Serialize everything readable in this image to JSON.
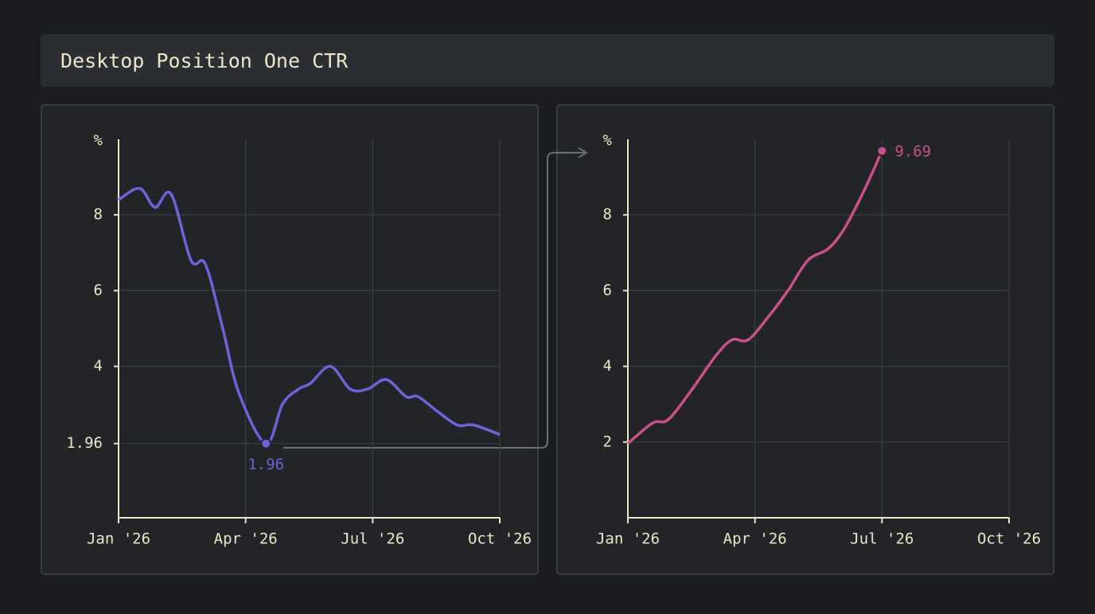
{
  "header": {
    "title": "Desktop Position One CTR"
  },
  "chart_data": [
    {
      "type": "line",
      "y_label": "%",
      "x": [
        0,
        0.5,
        0.86,
        1.24,
        1.71,
        2.05,
        2.46,
        2.84,
        3.48,
        3.87,
        4.25,
        4.53,
        5.0,
        5.47,
        5.88,
        6.32,
        6.79,
        7.07,
        7.54,
        8.0,
        8.38,
        9.0
      ],
      "series": [
        {
          "color": "#6f63d9",
          "values": [
            8.4,
            8.7,
            8.2,
            8.55,
            6.8,
            6.7,
            5.0,
            3.3,
            1.96,
            3.0,
            3.4,
            3.55,
            4.0,
            3.4,
            3.4,
            3.65,
            3.2,
            3.2,
            2.8,
            2.45,
            2.45,
            2.2
          ]
        }
      ],
      "xlim": [
        0,
        9
      ],
      "ylim": [
        0,
        10
      ],
      "xticks": [
        {
          "value": 0,
          "label": "Jan '26"
        },
        {
          "value": 3,
          "label": "Apr '26"
        },
        {
          "value": 6,
          "label": "Jul '26"
        },
        {
          "value": 9,
          "label": "Oct '26"
        }
      ],
      "yticks": [
        1.96,
        4,
        6,
        8
      ],
      "grid": true
    },
    {
      "type": "line",
      "y_label": "%",
      "x": [
        0,
        0.58,
        0.96,
        1.52,
        2.09,
        2.46,
        2.84,
        3.31,
        3.78,
        4.25,
        4.72,
        5.09,
        5.56,
        6.0
      ],
      "series": [
        {
          "color": "#c9508a",
          "values": [
            1.96,
            2.5,
            2.6,
            3.4,
            4.3,
            4.7,
            4.7,
            5.3,
            6.0,
            6.8,
            7.1,
            7.6,
            8.6,
            9.69
          ]
        }
      ],
      "xlim": [
        0,
        9
      ],
      "ylim": [
        0,
        10
      ],
      "xticks": [
        {
          "value": 0,
          "label": "Jan '26"
        },
        {
          "value": 3,
          "label": "Apr '26"
        },
        {
          "value": 6,
          "label": "Jul '26"
        },
        {
          "value": 9,
          "label": "Oct '26"
        }
      ],
      "yticks": [
        2,
        4,
        6,
        8
      ],
      "grid": true
    }
  ]
}
